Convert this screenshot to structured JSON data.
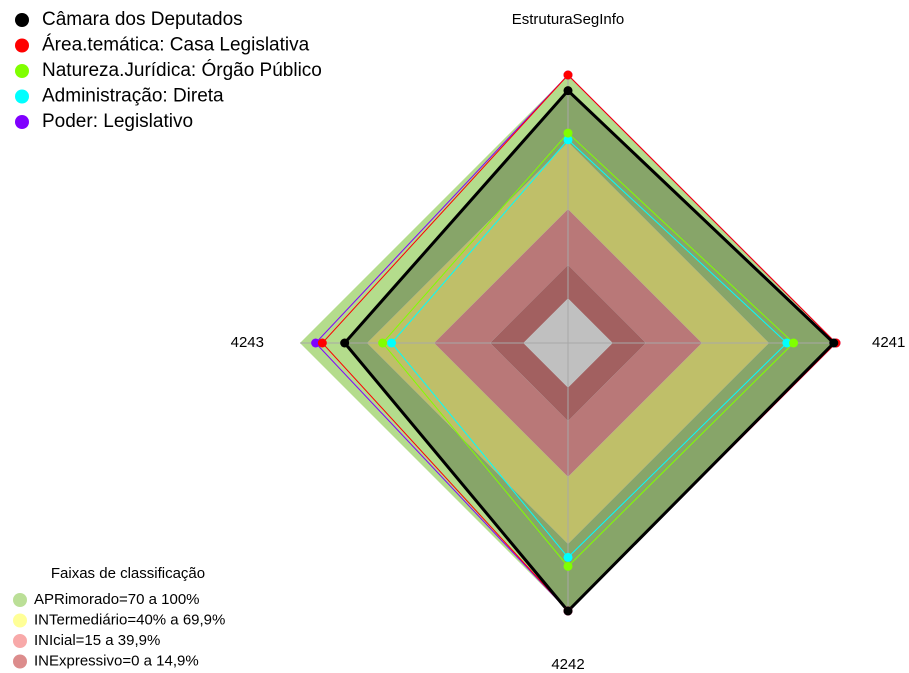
{
  "chart_data": {
    "type": "radar",
    "categories": [
      "EstruturaSegInfo",
      "4241",
      "4242",
      "4243"
    ],
    "ylim": [
      -20,
      100
    ],
    "series": [
      {
        "name": "Câmara dos Deputados",
        "color": "#000000",
        "values": [
          93,
          99,
          100,
          80
        ]
      },
      {
        "name": "Área.temática: Casa Legislativa",
        "color": "#ff0000",
        "values": [
          100,
          100,
          100,
          90
        ]
      },
      {
        "name": "Natureza.Jurídica: Órgão Público",
        "color": "#80ff00",
        "values": [
          74,
          81,
          80,
          63
        ]
      },
      {
        "name": "Administração: Direta",
        "color": "#00ffff",
        "values": [
          71,
          78,
          76,
          59
        ]
      },
      {
        "name": "Poder: Legislativo",
        "color": "#8000ff",
        "values": [
          100,
          100,
          100,
          93
        ]
      }
    ],
    "bands_title": "Faixas de classificação",
    "bands": [
      {
        "label": "APRimorado=70 a 100%",
        "color": "#b4dc8c",
        "range": [
          70,
          100
        ]
      },
      {
        "label": "INTermediário=40% a 69,9%",
        "color": "#ffff8c",
        "range": [
          40,
          69.9
        ]
      },
      {
        "label": "INIcial=15 a 39,9%",
        "color": "#f7a0a0",
        "range": [
          15,
          39.9
        ]
      },
      {
        "label": "INExpressivo=0 a 14,9%",
        "color": "#d88080",
        "range": [
          0,
          14.9
        ]
      }
    ]
  }
}
